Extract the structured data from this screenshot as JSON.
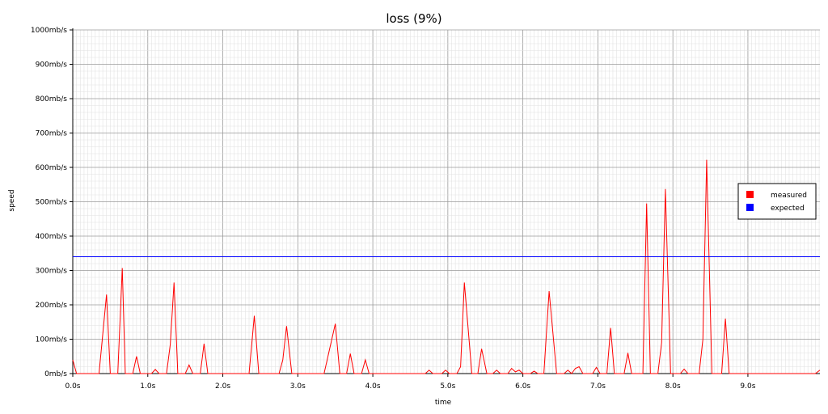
{
  "chart_data": {
    "type": "line",
    "title": "loss (9%)",
    "xlabel": "time",
    "ylabel": "speed",
    "xlim": [
      0,
      9.96
    ],
    "ylim": [
      0,
      1000
    ],
    "grid": true,
    "legend_position": "right",
    "x_ticks": [
      0,
      1,
      2,
      3,
      4,
      5,
      6,
      7,
      8,
      9
    ],
    "x_tick_labels": [
      "0.0s",
      "1.0s",
      "2.0s",
      "3.0s",
      "4.0s",
      "5.0s",
      "6.0s",
      "7.0s",
      "8.0s",
      "9.0s"
    ],
    "y_ticks": [
      0,
      100,
      200,
      300,
      400,
      500,
      600,
      700,
      800,
      900,
      1000
    ],
    "y_tick_labels": [
      "0mb/s",
      "100mb/s",
      "200mb/s",
      "300mb/s",
      "400mb/s",
      "500mb/s",
      "600mb/s",
      "700mb/s",
      "800mb/s",
      "900mb/s",
      "1000mb/s"
    ],
    "series": [
      {
        "name": "measured",
        "color": "#ff0000",
        "points": [
          [
            0,
            40
          ],
          [
            0.05,
            0
          ],
          [
            0.3,
            0
          ],
          [
            0.35,
            0
          ],
          [
            0.45,
            230
          ],
          [
            0.5,
            0
          ],
          [
            0.6,
            0
          ],
          [
            0.66,
            307
          ],
          [
            0.7,
            0
          ],
          [
            0.8,
            0
          ],
          [
            0.85,
            50
          ],
          [
            0.9,
            0
          ],
          [
            1.05,
            0
          ],
          [
            1.1,
            12
          ],
          [
            1.15,
            0
          ],
          [
            1.25,
            0
          ],
          [
            1.3,
            85
          ],
          [
            1.35,
            265
          ],
          [
            1.4,
            0
          ],
          [
            1.5,
            0
          ],
          [
            1.55,
            25
          ],
          [
            1.6,
            0
          ],
          [
            1.7,
            0
          ],
          [
            1.75,
            87
          ],
          [
            1.8,
            0
          ],
          [
            2.35,
            0
          ],
          [
            2.42,
            168
          ],
          [
            2.48,
            0
          ],
          [
            2.75,
            0
          ],
          [
            2.8,
            40
          ],
          [
            2.85,
            138
          ],
          [
            2.92,
            0
          ],
          [
            3.35,
            0
          ],
          [
            3.5,
            145
          ],
          [
            3.56,
            0
          ],
          [
            3.65,
            0
          ],
          [
            3.7,
            58
          ],
          [
            3.75,
            0
          ],
          [
            3.85,
            0
          ],
          [
            3.9,
            40
          ],
          [
            3.95,
            0
          ],
          [
            4.7,
            0
          ],
          [
            4.75,
            10
          ],
          [
            4.8,
            0
          ],
          [
            4.92,
            0
          ],
          [
            4.97,
            10
          ],
          [
            5.02,
            0
          ],
          [
            5.12,
            0
          ],
          [
            5.17,
            20
          ],
          [
            5.22,
            265
          ],
          [
            5.32,
            0
          ],
          [
            5.4,
            0
          ],
          [
            5.45,
            72
          ],
          [
            5.52,
            0
          ],
          [
            5.6,
            0
          ],
          [
            5.65,
            10
          ],
          [
            5.7,
            0
          ],
          [
            5.8,
            0
          ],
          [
            5.85,
            15
          ],
          [
            5.9,
            5
          ],
          [
            5.95,
            10
          ],
          [
            6.0,
            0
          ],
          [
            6.1,
            0
          ],
          [
            6.15,
            7
          ],
          [
            6.2,
            0
          ],
          [
            6.28,
            0
          ],
          [
            6.35,
            240
          ],
          [
            6.45,
            0
          ],
          [
            6.55,
            0
          ],
          [
            6.6,
            10
          ],
          [
            6.65,
            0
          ],
          [
            6.7,
            15
          ],
          [
            6.75,
            20
          ],
          [
            6.8,
            0
          ],
          [
            6.93,
            0
          ],
          [
            6.98,
            18
          ],
          [
            7.03,
            0
          ],
          [
            7.12,
            0
          ],
          [
            7.17,
            133
          ],
          [
            7.22,
            0
          ],
          [
            7.35,
            0
          ],
          [
            7.4,
            60
          ],
          [
            7.45,
            0
          ],
          [
            7.6,
            0
          ],
          [
            7.65,
            495
          ],
          [
            7.7,
            0
          ],
          [
            7.8,
            0
          ],
          [
            7.85,
            90
          ],
          [
            7.9,
            537
          ],
          [
            7.97,
            0
          ],
          [
            8.1,
            0
          ],
          [
            8.15,
            13
          ],
          [
            8.2,
            0
          ],
          [
            8.35,
            0
          ],
          [
            8.4,
            100
          ],
          [
            8.45,
            622
          ],
          [
            8.52,
            0
          ],
          [
            8.65,
            0
          ],
          [
            8.7,
            160
          ],
          [
            8.75,
            0
          ],
          [
            9.9,
            0
          ],
          [
            9.96,
            10
          ]
        ]
      },
      {
        "name": "expected",
        "color": "#0000ff",
        "points": [
          [
            0,
            340
          ],
          [
            9.96,
            340
          ]
        ]
      }
    ]
  }
}
